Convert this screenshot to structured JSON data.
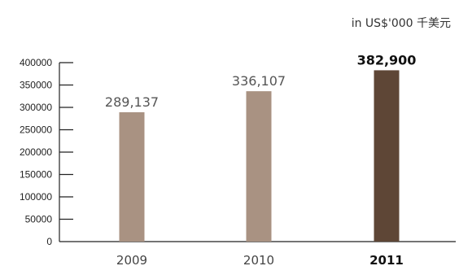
{
  "unit_label": "in US$'000 千美元",
  "colors": {
    "bar_default": "#a99282",
    "bar_highlight": "#5e4636",
    "axis": "#222222"
  },
  "chart_data": {
    "type": "bar",
    "categories": [
      "2009",
      "2010",
      "2011"
    ],
    "values": [
      289137,
      336107,
      382900
    ],
    "value_labels": [
      "289,137",
      "336,107",
      "382,900"
    ],
    "highlight_index": 2,
    "ylim": [
      0,
      400000
    ],
    "yticks": [
      "0",
      "50000",
      "100000",
      "150000",
      "200000",
      "250000",
      "300000",
      "350000",
      "400000"
    ],
    "grid": false,
    "legend": "none"
  }
}
